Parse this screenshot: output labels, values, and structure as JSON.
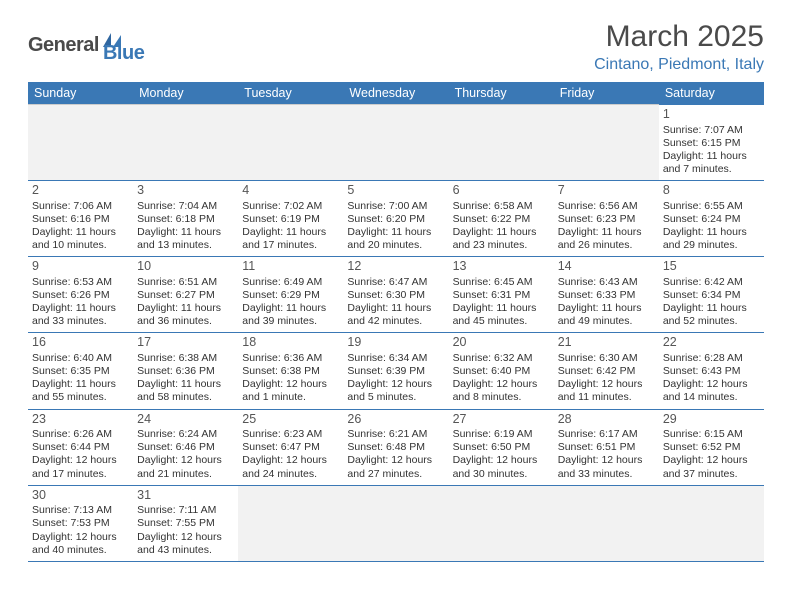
{
  "logo": {
    "part1": "General",
    "part2": "Blue"
  },
  "title": "March 2025",
  "location": "Cintano, Piedmont, Italy",
  "style": {
    "header_bg": "#3a78b5",
    "header_fg": "#ffffff",
    "border_color": "#3a78b5",
    "empty_bg": "#f2f2f2",
    "text_color": "#333333",
    "daynum_color": "#555555",
    "title_color": "#4a4a4a",
    "location_color": "#3a78b5",
    "font_day": 12.5,
    "font_body": 10.5,
    "font_header": 12.5,
    "font_title": 30,
    "font_location": 16
  },
  "weekdays": [
    "Sunday",
    "Monday",
    "Tuesday",
    "Wednesday",
    "Thursday",
    "Friday",
    "Saturday"
  ],
  "weeks": [
    [
      null,
      null,
      null,
      null,
      null,
      null,
      {
        "n": "1",
        "sr": "Sunrise: 7:07 AM",
        "ss": "Sunset: 6:15 PM",
        "d1": "Daylight: 11 hours",
        "d2": "and 7 minutes."
      }
    ],
    [
      {
        "n": "2",
        "sr": "Sunrise: 7:06 AM",
        "ss": "Sunset: 6:16 PM",
        "d1": "Daylight: 11 hours",
        "d2": "and 10 minutes."
      },
      {
        "n": "3",
        "sr": "Sunrise: 7:04 AM",
        "ss": "Sunset: 6:18 PM",
        "d1": "Daylight: 11 hours",
        "d2": "and 13 minutes."
      },
      {
        "n": "4",
        "sr": "Sunrise: 7:02 AM",
        "ss": "Sunset: 6:19 PM",
        "d1": "Daylight: 11 hours",
        "d2": "and 17 minutes."
      },
      {
        "n": "5",
        "sr": "Sunrise: 7:00 AM",
        "ss": "Sunset: 6:20 PM",
        "d1": "Daylight: 11 hours",
        "d2": "and 20 minutes."
      },
      {
        "n": "6",
        "sr": "Sunrise: 6:58 AM",
        "ss": "Sunset: 6:22 PM",
        "d1": "Daylight: 11 hours",
        "d2": "and 23 minutes."
      },
      {
        "n": "7",
        "sr": "Sunrise: 6:56 AM",
        "ss": "Sunset: 6:23 PM",
        "d1": "Daylight: 11 hours",
        "d2": "and 26 minutes."
      },
      {
        "n": "8",
        "sr": "Sunrise: 6:55 AM",
        "ss": "Sunset: 6:24 PM",
        "d1": "Daylight: 11 hours",
        "d2": "and 29 minutes."
      }
    ],
    [
      {
        "n": "9",
        "sr": "Sunrise: 6:53 AM",
        "ss": "Sunset: 6:26 PM",
        "d1": "Daylight: 11 hours",
        "d2": "and 33 minutes."
      },
      {
        "n": "10",
        "sr": "Sunrise: 6:51 AM",
        "ss": "Sunset: 6:27 PM",
        "d1": "Daylight: 11 hours",
        "d2": "and 36 minutes."
      },
      {
        "n": "11",
        "sr": "Sunrise: 6:49 AM",
        "ss": "Sunset: 6:29 PM",
        "d1": "Daylight: 11 hours",
        "d2": "and 39 minutes."
      },
      {
        "n": "12",
        "sr": "Sunrise: 6:47 AM",
        "ss": "Sunset: 6:30 PM",
        "d1": "Daylight: 11 hours",
        "d2": "and 42 minutes."
      },
      {
        "n": "13",
        "sr": "Sunrise: 6:45 AM",
        "ss": "Sunset: 6:31 PM",
        "d1": "Daylight: 11 hours",
        "d2": "and 45 minutes."
      },
      {
        "n": "14",
        "sr": "Sunrise: 6:43 AM",
        "ss": "Sunset: 6:33 PM",
        "d1": "Daylight: 11 hours",
        "d2": "and 49 minutes."
      },
      {
        "n": "15",
        "sr": "Sunrise: 6:42 AM",
        "ss": "Sunset: 6:34 PM",
        "d1": "Daylight: 11 hours",
        "d2": "and 52 minutes."
      }
    ],
    [
      {
        "n": "16",
        "sr": "Sunrise: 6:40 AM",
        "ss": "Sunset: 6:35 PM",
        "d1": "Daylight: 11 hours",
        "d2": "and 55 minutes."
      },
      {
        "n": "17",
        "sr": "Sunrise: 6:38 AM",
        "ss": "Sunset: 6:36 PM",
        "d1": "Daylight: 11 hours",
        "d2": "and 58 minutes."
      },
      {
        "n": "18",
        "sr": "Sunrise: 6:36 AM",
        "ss": "Sunset: 6:38 PM",
        "d1": "Daylight: 12 hours",
        "d2": "and 1 minute."
      },
      {
        "n": "19",
        "sr": "Sunrise: 6:34 AM",
        "ss": "Sunset: 6:39 PM",
        "d1": "Daylight: 12 hours",
        "d2": "and 5 minutes."
      },
      {
        "n": "20",
        "sr": "Sunrise: 6:32 AM",
        "ss": "Sunset: 6:40 PM",
        "d1": "Daylight: 12 hours",
        "d2": "and 8 minutes."
      },
      {
        "n": "21",
        "sr": "Sunrise: 6:30 AM",
        "ss": "Sunset: 6:42 PM",
        "d1": "Daylight: 12 hours",
        "d2": "and 11 minutes."
      },
      {
        "n": "22",
        "sr": "Sunrise: 6:28 AM",
        "ss": "Sunset: 6:43 PM",
        "d1": "Daylight: 12 hours",
        "d2": "and 14 minutes."
      }
    ],
    [
      {
        "n": "23",
        "sr": "Sunrise: 6:26 AM",
        "ss": "Sunset: 6:44 PM",
        "d1": "Daylight: 12 hours",
        "d2": "and 17 minutes."
      },
      {
        "n": "24",
        "sr": "Sunrise: 6:24 AM",
        "ss": "Sunset: 6:46 PM",
        "d1": "Daylight: 12 hours",
        "d2": "and 21 minutes."
      },
      {
        "n": "25",
        "sr": "Sunrise: 6:23 AM",
        "ss": "Sunset: 6:47 PM",
        "d1": "Daylight: 12 hours",
        "d2": "and 24 minutes."
      },
      {
        "n": "26",
        "sr": "Sunrise: 6:21 AM",
        "ss": "Sunset: 6:48 PM",
        "d1": "Daylight: 12 hours",
        "d2": "and 27 minutes."
      },
      {
        "n": "27",
        "sr": "Sunrise: 6:19 AM",
        "ss": "Sunset: 6:50 PM",
        "d1": "Daylight: 12 hours",
        "d2": "and 30 minutes."
      },
      {
        "n": "28",
        "sr": "Sunrise: 6:17 AM",
        "ss": "Sunset: 6:51 PM",
        "d1": "Daylight: 12 hours",
        "d2": "and 33 minutes."
      },
      {
        "n": "29",
        "sr": "Sunrise: 6:15 AM",
        "ss": "Sunset: 6:52 PM",
        "d1": "Daylight: 12 hours",
        "d2": "and 37 minutes."
      }
    ],
    [
      {
        "n": "30",
        "sr": "Sunrise: 7:13 AM",
        "ss": "Sunset: 7:53 PM",
        "d1": "Daylight: 12 hours",
        "d2": "and 40 minutes."
      },
      {
        "n": "31",
        "sr": "Sunrise: 7:11 AM",
        "ss": "Sunset: 7:55 PM",
        "d1": "Daylight: 12 hours",
        "d2": "and 43 minutes."
      },
      null,
      null,
      null,
      null,
      null
    ]
  ]
}
